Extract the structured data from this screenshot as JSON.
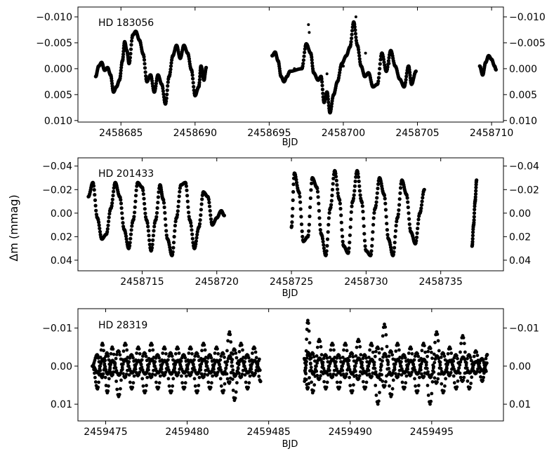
{
  "figure": {
    "ylabel": "Δm (mmag)",
    "ink_color": "#000000",
    "background": "#ffffff"
  },
  "chart_data": [
    {
      "type": "scatter",
      "title": "",
      "annotation": "HD 183056",
      "xlabel": "BJD",
      "ylabel": "Δm (mmag)",
      "xlim": [
        2458682.1,
        2458710.8
      ],
      "ylim": [
        0.0103,
        -0.0119
      ],
      "y_inverted": true,
      "grid": false,
      "xticks": [
        2458685,
        2458690,
        2458695,
        2458700,
        2458705,
        2458710
      ],
      "xtick_labels": [
        "2458685",
        "2458690",
        "2458695",
        "2458700",
        "2458705",
        "2458710"
      ],
      "yticks": [
        -0.01,
        -0.005,
        0.0,
        0.005,
        0.01
      ],
      "ytick_labels": [
        "−0.010",
        "−0.005",
        "0.000",
        "0.005",
        "0.010"
      ],
      "series": [
        {
          "values": [
            [
              2458683.3,
              0.0015
            ],
            [
              2458683.5,
              -0.0005
            ],
            [
              2458683.7,
              -0.0012
            ],
            [
              2458683.9,
              0.0003
            ],
            [
              2458684.1,
              -0.0002
            ],
            [
              2458684.3,
              0.0012
            ],
            [
              2458684.5,
              0.0045
            ],
            [
              2458684.7,
              0.0035
            ],
            [
              2458684.9,
              0.0022
            ],
            [
              2458685.1,
              -0.0015
            ],
            [
              2458685.25,
              -0.0052
            ],
            [
              2458685.4,
              -0.0035
            ],
            [
              2458685.55,
              -0.001
            ],
            [
              2458685.8,
              -0.0065
            ],
            [
              2458686.0,
              -0.0072
            ],
            [
              2458686.25,
              -0.0055
            ],
            [
              2458686.5,
              -0.0028
            ],
            [
              2458686.75,
              0.0025
            ],
            [
              2458687.0,
              0.0012
            ],
            [
              2458687.25,
              0.0045
            ],
            [
              2458687.5,
              0.0012
            ],
            [
              2458687.75,
              0.003
            ],
            [
              2458688.0,
              0.0068
            ],
            [
              2458688.25,
              0.0015
            ],
            [
              2458688.5,
              -0.0025
            ],
            [
              2458688.75,
              -0.0045
            ],
            [
              2458689.0,
              -0.002
            ],
            [
              2458689.25,
              -0.0045
            ],
            [
              2458689.5,
              -0.003
            ],
            [
              2458689.75,
              0.0002
            ],
            [
              2458690.0,
              0.0052
            ],
            [
              2458690.25,
              0.0035
            ],
            [
              2458690.4,
              -0.0005
            ],
            [
              2458690.6,
              0.0022
            ],
            [
              2458690.75,
              -0.0002
            ]
          ]
        },
        {
          "values": [
            [
              2458695.2,
              -0.0025
            ],
            [
              2458695.4,
              -0.0032
            ],
            [
              2458695.6,
              -0.0015
            ],
            [
              2458695.8,
              0.0015
            ],
            [
              2458696.0,
              0.0025
            ],
            [
              2458696.2,
              0.0015
            ],
            [
              2458696.4,
              0.0005
            ],
            [
              2458697.2,
              0.0
            ],
            [
              2458697.5,
              -0.0048
            ],
            [
              2458697.8,
              -0.003
            ],
            [
              2458698.0,
              0.0008
            ],
            [
              2458698.3,
              0.0022
            ],
            [
              2458698.5,
              0.0015
            ],
            [
              2458698.7,
              0.0065
            ],
            [
              2458698.9,
              0.0045
            ],
            [
              2458699.1,
              0.0085
            ],
            [
              2458699.35,
              0.005
            ],
            [
              2458699.6,
              0.0025
            ],
            [
              2458699.9,
              -0.001
            ],
            [
              2458700.2,
              -0.0025
            ],
            [
              2458700.45,
              -0.0042
            ],
            [
              2458700.7,
              -0.009
            ],
            [
              2458700.95,
              -0.0045
            ],
            [
              2458701.2,
              -0.0005
            ],
            [
              2458701.45,
              0.0015
            ],
            [
              2458701.7,
              0.0008
            ],
            [
              2458702.0,
              0.0035
            ],
            [
              2458702.3,
              0.003
            ],
            [
              2458702.6,
              -0.003
            ],
            [
              2458702.9,
              0.0005
            ],
            [
              2458703.2,
              -0.0035
            ],
            [
              2458703.5,
              -0.0005
            ],
            [
              2458703.8,
              0.002
            ],
            [
              2458704.1,
              0.0035
            ],
            [
              2458704.4,
              -0.0005
            ],
            [
              2458704.6,
              0.003
            ],
            [
              2458704.9,
              0.0005
            ]
          ]
        },
        {
          "values": [
            [
              2458709.2,
              -0.0005
            ],
            [
              2458709.4,
              0.0012
            ],
            [
              2458709.6,
              -0.0012
            ],
            [
              2458709.8,
              -0.0025
            ],
            [
              2458710.0,
              -0.0018
            ],
            [
              2458710.2,
              -0.0005
            ],
            [
              2458710.3,
              0.0002
            ]
          ]
        },
        {
          "values": [
            [
              2458697.65,
              -0.0085
            ],
            [
              2458697.7,
              -0.007
            ],
            [
              2458700.85,
              -0.01
            ],
            [
              2458701.5,
              -0.003
            ],
            [
              2458700.0,
              -0.0005
            ],
            [
              2458703.1,
              -0.001
            ],
            [
              2458696.7,
              0.0
            ],
            [
              2458698.9,
              0.001
            ]
          ]
        }
      ]
    },
    {
      "type": "scatter",
      "title": "",
      "annotation": "HD 201433",
      "xlabel": "BJD",
      "ylabel": "Δm (mmag)",
      "xlim": [
        2458710.7,
        2458739.2
      ],
      "ylim": [
        0.049,
        -0.047
      ],
      "y_inverted": true,
      "grid": false,
      "xticks": [
        2458715,
        2458720,
        2458725,
        2458730,
        2458735
      ],
      "xtick_labels": [
        "2458715",
        "2458720",
        "2458725",
        "2458730",
        "2458735"
      ],
      "yticks": [
        -0.04,
        -0.02,
        0.0,
        0.02,
        0.04
      ],
      "ytick_labels": [
        "−0.04",
        "−0.02",
        "0.00",
        "0.02",
        "0.04"
      ],
      "series": [
        {
          "values": [
            [
              2458711.4,
              -0.014
            ],
            [
              2458711.7,
              -0.026
            ],
            [
              2458712.0,
              0.004
            ],
            [
              2458712.3,
              0.022
            ],
            [
              2458712.6,
              0.018
            ],
            [
              2458712.9,
              -0.004
            ],
            [
              2458713.2,
              -0.026
            ],
            [
              2458713.5,
              -0.014
            ],
            [
              2458713.8,
              0.014
            ],
            [
              2458714.1,
              0.03
            ],
            [
              2458714.4,
              0.006
            ],
            [
              2458714.7,
              -0.026
            ],
            [
              2458715.0,
              -0.022
            ],
            [
              2458715.3,
              0.006
            ],
            [
              2458715.6,
              0.032
            ],
            [
              2458715.9,
              0.006
            ],
            [
              2458716.2,
              -0.024
            ],
            [
              2458716.4,
              -0.012
            ],
            [
              2458716.7,
              0.022
            ],
            [
              2458717.0,
              0.036
            ],
            [
              2458717.3,
              0.004
            ],
            [
              2458717.6,
              -0.024
            ],
            [
              2458717.9,
              -0.026
            ],
            [
              2458718.2,
              0.006
            ],
            [
              2458718.5,
              0.03
            ],
            [
              2458718.8,
              0.012
            ],
            [
              2458719.1,
              -0.018
            ],
            [
              2458719.4,
              -0.014
            ],
            [
              2458719.7,
              0.01
            ],
            [
              2458720.0,
              0.004
            ],
            [
              2458720.3,
              -0.002
            ],
            [
              2458720.5,
              0.002
            ]
          ]
        },
        {
          "values": [
            [
              2458725.0,
              0.012
            ],
            [
              2458725.2,
              -0.034
            ],
            [
              2458725.5,
              -0.018
            ],
            [
              2458725.8,
              0.024
            ],
            [
              2458726.1,
              0.02
            ],
            [
              2458726.4,
              -0.03
            ],
            [
              2458726.7,
              -0.022
            ],
            [
              2458727.0,
              0.018
            ],
            [
              2458727.3,
              0.036
            ],
            [
              2458727.6,
              -0.004
            ],
            [
              2458727.9,
              -0.036
            ],
            [
              2458728.2,
              -0.012
            ],
            [
              2458728.5,
              0.028
            ],
            [
              2458728.8,
              0.034
            ],
            [
              2458729.1,
              -0.01
            ],
            [
              2458729.4,
              -0.036
            ],
            [
              2458729.7,
              -0.01
            ],
            [
              2458730.0,
              0.032
            ],
            [
              2458730.3,
              0.036
            ],
            [
              2458730.6,
              -0.004
            ],
            [
              2458730.9,
              -0.03
            ],
            [
              2458731.2,
              -0.016
            ],
            [
              2458731.5,
              0.022
            ],
            [
              2458731.8,
              0.036
            ],
            [
              2458732.1,
              0.004
            ],
            [
              2458732.4,
              -0.028
            ],
            [
              2458732.7,
              -0.016
            ],
            [
              2458733.0,
              0.016
            ],
            [
              2458733.3,
              0.026
            ],
            [
              2458733.6,
              0.0
            ],
            [
              2458733.9,
              -0.02
            ]
          ]
        },
        {
          "values": [
            [
              2458737.1,
              0.028
            ],
            [
              2458737.2,
              0.01
            ],
            [
              2458737.3,
              -0.01
            ],
            [
              2458737.4,
              -0.028
            ]
          ]
        }
      ]
    },
    {
      "type": "scatter",
      "title": "",
      "annotation": "HD 28319",
      "xlabel": "BJD",
      "ylabel": "Δm (mmag)",
      "xlim": [
        2459473.3,
        2459499.4
      ],
      "ylim": [
        0.0144,
        -0.0151
      ],
      "y_inverted": true,
      "grid": false,
      "xticks": [
        2459475,
        2459480,
        2459485,
        2459490,
        2459495
      ],
      "xtick_labels": [
        "2459475",
        "2459480",
        "2459485",
        "2459490",
        "2459495"
      ],
      "yticks": [
        -0.01,
        0.0,
        0.01
      ],
      "ytick_labels": [
        "−0.01",
        "0.00",
        "0.01"
      ],
      "series": [
        {
          "values": [
            [
              2459474.2,
              0.0
            ],
            [
              2459474.5,
              0.006
            ],
            [
              2459474.8,
              -0.006
            ],
            [
              2459475.1,
              0.007
            ],
            [
              2459475.4,
              -0.005
            ],
            [
              2459475.8,
              0.008
            ],
            [
              2459476.2,
              -0.006
            ],
            [
              2459476.6,
              0.006
            ],
            [
              2459477.0,
              -0.005
            ],
            [
              2459477.4,
              0.007
            ],
            [
              2459477.8,
              -0.006
            ],
            [
              2459478.2,
              0.006
            ],
            [
              2459478.6,
              -0.005
            ],
            [
              2459479.0,
              0.007
            ],
            [
              2459479.4,
              -0.005
            ],
            [
              2459479.8,
              0.006
            ],
            [
              2459480.2,
              -0.005
            ],
            [
              2459480.6,
              0.007
            ],
            [
              2459481.0,
              -0.006
            ],
            [
              2459481.4,
              0.006
            ],
            [
              2459481.8,
              -0.005
            ],
            [
              2459482.2,
              0.007
            ],
            [
              2459482.6,
              -0.009
            ],
            [
              2459482.9,
              0.009
            ],
            [
              2459483.3,
              -0.006
            ],
            [
              2459483.7,
              0.006
            ],
            [
              2459484.1,
              -0.005
            ],
            [
              2459484.5,
              0.004
            ]
          ]
        },
        {
          "values": [
            [
              2459487.2,
              0.004
            ],
            [
              2459487.4,
              -0.012
            ],
            [
              2459487.7,
              0.007
            ],
            [
              2459488.1,
              -0.007
            ],
            [
              2459488.5,
              0.006
            ],
            [
              2459488.9,
              -0.006
            ],
            [
              2459489.3,
              0.006
            ],
            [
              2459489.7,
              -0.006
            ],
            [
              2459490.1,
              0.007
            ],
            [
              2459490.5,
              -0.007
            ],
            [
              2459490.9,
              0.006
            ],
            [
              2459491.3,
              -0.006
            ],
            [
              2459491.7,
              0.01
            ],
            [
              2459492.1,
              -0.011
            ],
            [
              2459492.5,
              0.008
            ],
            [
              2459492.9,
              -0.006
            ],
            [
              2459493.3,
              0.006
            ],
            [
              2459493.7,
              -0.005
            ],
            [
              2459494.1,
              0.007
            ],
            [
              2459494.5,
              -0.006
            ],
            [
              2459494.9,
              0.01
            ],
            [
              2459495.3,
              -0.009
            ],
            [
              2459495.7,
              0.007
            ],
            [
              2459496.1,
              -0.005
            ],
            [
              2459496.5,
              0.006
            ],
            [
              2459496.9,
              -0.008
            ],
            [
              2459497.3,
              0.006
            ],
            [
              2459497.7,
              -0.004
            ],
            [
              2459498.1,
              0.004
            ],
            [
              2459498.4,
              -0.003
            ]
          ]
        }
      ]
    }
  ]
}
